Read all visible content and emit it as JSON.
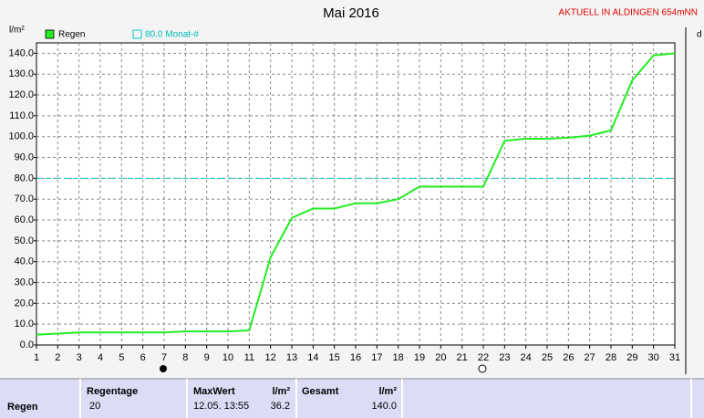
{
  "chart_data": {
    "type": "line",
    "title": "Mai 2016",
    "annotation": "AKTUELL IN ALDINGEN 654mNN",
    "y_label": "l/m²",
    "x": [
      1,
      2,
      3,
      4,
      5,
      6,
      7,
      8,
      9,
      10,
      11,
      12,
      13,
      14,
      15,
      16,
      17,
      18,
      19,
      20,
      21,
      22,
      23,
      24,
      25,
      26,
      27,
      28,
      29,
      30,
      31
    ],
    "series": [
      {
        "name": "Regen",
        "color": "#22ee22",
        "values": [
          5.0,
          5.5,
          6,
          6,
          6,
          6,
          6,
          6.5,
          6.5,
          6.5,
          7,
          42,
          61,
          65.5,
          65.5,
          68,
          68,
          70,
          76,
          76,
          76,
          76,
          98,
          99,
          99,
          99.5,
          100.5,
          103,
          127,
          139,
          140
        ]
      }
    ],
    "reference_line": {
      "value": 80,
      "label": "80.0 Monat-#",
      "color": "#00cccc"
    },
    "xlim": [
      1,
      31
    ],
    "ylim": [
      0,
      145
    ],
    "xticks": [
      1,
      2,
      3,
      4,
      5,
      6,
      7,
      8,
      9,
      10,
      11,
      12,
      13,
      14,
      15,
      16,
      17,
      18,
      19,
      20,
      21,
      22,
      23,
      24,
      25,
      26,
      27,
      28,
      29,
      30,
      31
    ],
    "yticks": [
      {
        "value": 0,
        "label": "0.0"
      },
      {
        "value": 10,
        "label": "10.0"
      },
      {
        "value": 20,
        "label": "20.0"
      },
      {
        "value": 30,
        "label": "30.0"
      },
      {
        "value": 40,
        "label": "40.0"
      },
      {
        "value": 50,
        "label": "50.0"
      },
      {
        "value": 60,
        "label": "60.0"
      },
      {
        "value": 70,
        "label": "70.0"
      },
      {
        "value": 80,
        "label": "80.0"
      },
      {
        "value": 90,
        "label": "90.0"
      },
      {
        "value": 100,
        "label": "100.0"
      },
      {
        "value": 110,
        "label": "110.0"
      },
      {
        "value": 120,
        "label": "120.0"
      },
      {
        "value": 130,
        "label": "130.0"
      },
      {
        "value": 140,
        "label": "140.0"
      }
    ],
    "grid": true
  },
  "table": {
    "row_label": "Regen",
    "columns": [
      {
        "header": "Regentage",
        "value": "20"
      },
      {
        "header": "MaxWert",
        "unit": "l/m²",
        "date": "12.05. 13:55",
        "value": "36.2"
      },
      {
        "header": "Gesamt",
        "unit": "l/m²",
        "value": "140.0"
      }
    ]
  }
}
